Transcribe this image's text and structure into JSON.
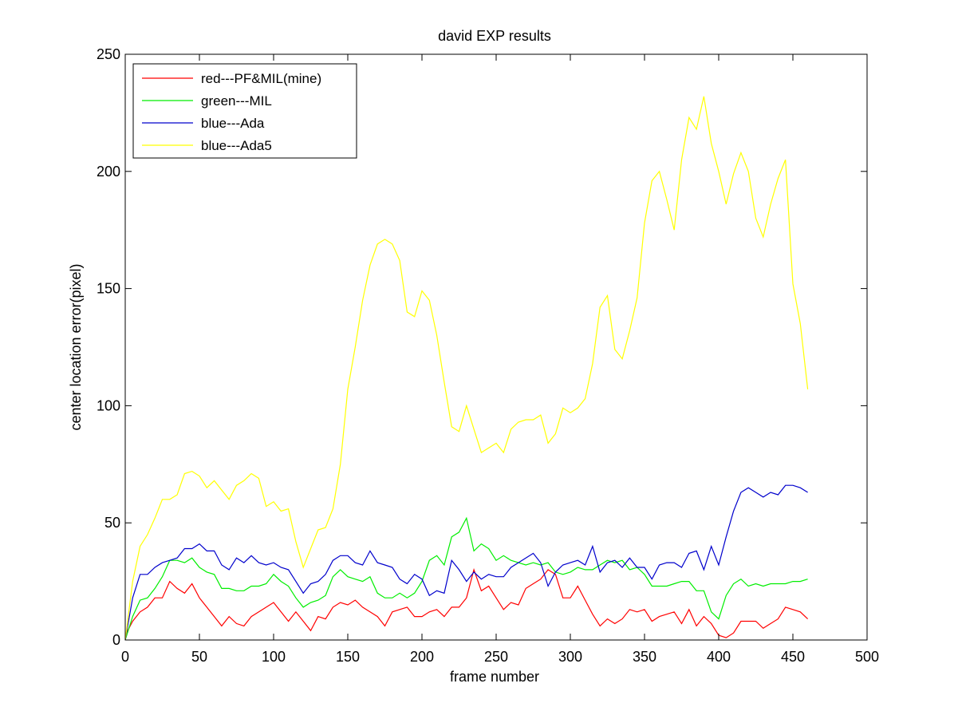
{
  "chart_data": {
    "type": "line",
    "title": "david EXP results",
    "xlabel": "frame number",
    "ylabel": "center location error(pixel)",
    "xlim": [
      0,
      500
    ],
    "ylim": [
      0,
      250
    ],
    "xticks": [
      0,
      50,
      100,
      150,
      200,
      250,
      300,
      350,
      400,
      450,
      500
    ],
    "yticks": [
      0,
      50,
      100,
      150,
      200,
      250
    ],
    "grid": false,
    "legend_position": "top-left",
    "x": [
      0,
      5,
      10,
      15,
      20,
      25,
      30,
      35,
      40,
      45,
      50,
      55,
      60,
      65,
      70,
      75,
      80,
      85,
      90,
      95,
      100,
      105,
      110,
      115,
      120,
      125,
      130,
      135,
      140,
      145,
      150,
      155,
      160,
      165,
      170,
      175,
      180,
      185,
      190,
      195,
      200,
      205,
      210,
      215,
      220,
      225,
      230,
      235,
      240,
      245,
      250,
      255,
      260,
      265,
      270,
      275,
      280,
      285,
      290,
      295,
      300,
      305,
      310,
      315,
      320,
      325,
      330,
      335,
      340,
      345,
      350,
      355,
      360,
      365,
      370,
      375,
      380,
      385,
      390,
      395,
      400,
      405,
      410,
      415,
      420,
      425,
      430,
      435,
      440,
      445,
      450,
      455,
      460
    ],
    "series": [
      {
        "name": "red---PF&MIL(mine)",
        "color": "#ff0000",
        "values": [
          2,
          8,
          12,
          14,
          18,
          18,
          25,
          22,
          20,
          24,
          18,
          14,
          10,
          6,
          10,
          7,
          6,
          10,
          12,
          14,
          16,
          12,
          8,
          12,
          8,
          4,
          10,
          9,
          14,
          16,
          15,
          17,
          14,
          12,
          10,
          6,
          12,
          13,
          14,
          10,
          10,
          12,
          13,
          10,
          14,
          14,
          18,
          30,
          21,
          23,
          18,
          13,
          16,
          15,
          22,
          24,
          26,
          30,
          28,
          18,
          18,
          23,
          17,
          11,
          6,
          9,
          7,
          9,
          13,
          12,
          13,
          8,
          10,
          11,
          12,
          7,
          13,
          6,
          10,
          7,
          2,
          1,
          3,
          8,
          8,
          8,
          5,
          7,
          9,
          14,
          13,
          12,
          9
        ]
      },
      {
        "name": "green---MIL",
        "color": "#00ee00",
        "values": [
          0,
          10,
          17,
          18,
          22,
          27,
          34,
          34,
          33,
          35,
          31,
          29,
          28,
          22,
          22,
          21,
          21,
          23,
          23,
          24,
          28,
          25,
          23,
          18,
          14,
          16,
          17,
          19,
          27,
          30,
          27,
          26,
          25,
          27,
          20,
          18,
          18,
          20,
          18,
          20,
          25,
          34,
          36,
          32,
          44,
          46,
          52,
          38,
          41,
          39,
          34,
          36,
          34,
          33,
          32,
          33,
          32,
          33,
          29,
          28,
          29,
          31,
          30,
          30,
          32,
          34,
          33,
          34,
          30,
          31,
          28,
          23,
          23,
          23,
          24,
          25,
          25,
          21,
          21,
          12,
          9,
          19,
          24,
          26,
          23,
          24,
          23,
          24,
          24,
          24,
          25,
          25,
          26
        ]
      },
      {
        "name": "blue---Ada",
        "color": "#0000cc",
        "values": [
          0,
          18,
          28,
          28,
          31,
          33,
          34,
          35,
          39,
          39,
          41,
          38,
          38,
          32,
          30,
          35,
          33,
          36,
          33,
          32,
          33,
          31,
          30,
          25,
          20,
          24,
          25,
          28,
          34,
          36,
          36,
          33,
          32,
          38,
          33,
          32,
          31,
          26,
          24,
          28,
          26,
          19,
          21,
          20,
          34,
          30,
          25,
          29,
          26,
          28,
          27,
          27,
          31,
          33,
          35,
          37,
          33,
          23,
          29,
          32,
          33,
          34,
          32,
          40,
          29,
          33,
          34,
          31,
          35,
          31,
          31,
          26,
          32,
          33,
          33,
          31,
          37,
          38,
          30,
          40,
          32,
          44,
          55,
          63,
          65,
          63,
          61,
          63,
          62,
          66,
          66,
          65,
          63
        ]
      },
      {
        "name": "blue---Ada5",
        "color": "#ffff00",
        "values": [
          0,
          25,
          40,
          45,
          52,
          60,
          60,
          62,
          71,
          72,
          70,
          65,
          68,
          64,
          60,
          66,
          68,
          71,
          69,
          57,
          59,
          55,
          56,
          42,
          31,
          39,
          47,
          48,
          56,
          75,
          107,
          125,
          145,
          160,
          169,
          171,
          169,
          162,
          140,
          138,
          149,
          145,
          130,
          110,
          91,
          89,
          100,
          90,
          80,
          82,
          84,
          80,
          90,
          93,
          94,
          94,
          96,
          84,
          88,
          99,
          97,
          99,
          103,
          118,
          142,
          147,
          124,
          120,
          132,
          146,
          178,
          196,
          200,
          188,
          175,
          205,
          223,
          218,
          232,
          212,
          200,
          186,
          199,
          208,
          200,
          180,
          172,
          186,
          197,
          205,
          152,
          135,
          107
        ]
      }
    ]
  }
}
